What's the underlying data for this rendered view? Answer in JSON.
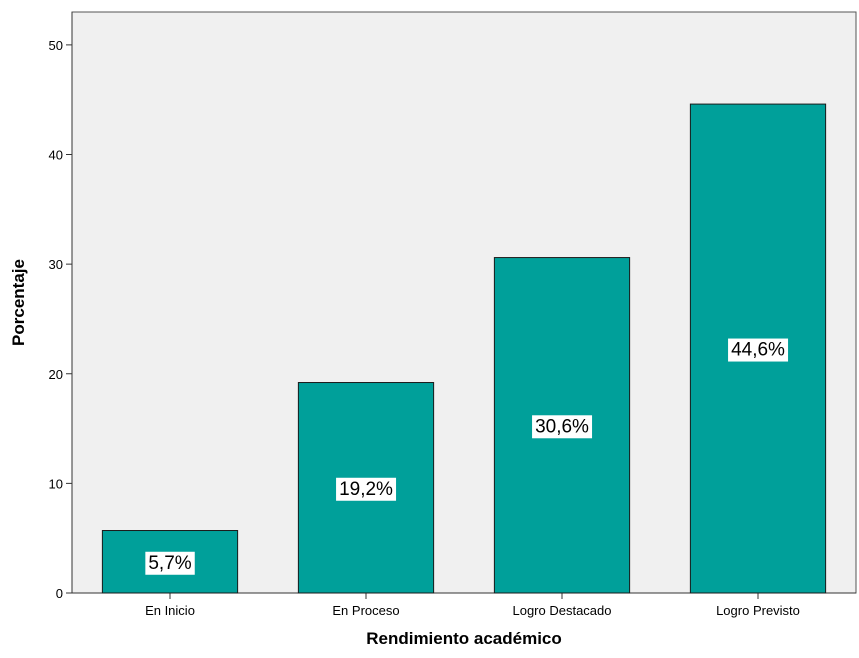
{
  "chart_data": {
    "type": "bar",
    "categories": [
      "En Inicio",
      "En Proceso",
      "Logro Destacado",
      "Logro Previsto"
    ],
    "values": [
      5.7,
      19.2,
      30.6,
      44.6
    ],
    "data_labels": [
      "5,7%",
      "19,2%",
      "30,6%",
      "44,6%"
    ],
    "xlabel": "Rendimiento académico",
    "ylabel": "Porcentaje",
    "ylim": [
      0,
      53
    ],
    "yticks": [
      0,
      10,
      20,
      30,
      40,
      50
    ],
    "grid": false,
    "legend": "none",
    "colors": {
      "bar_fill": "#00A09A",
      "bar_stroke": "#1a1a1a",
      "plot_background": "#F0F0F0",
      "plot_border": "#555555"
    }
  }
}
